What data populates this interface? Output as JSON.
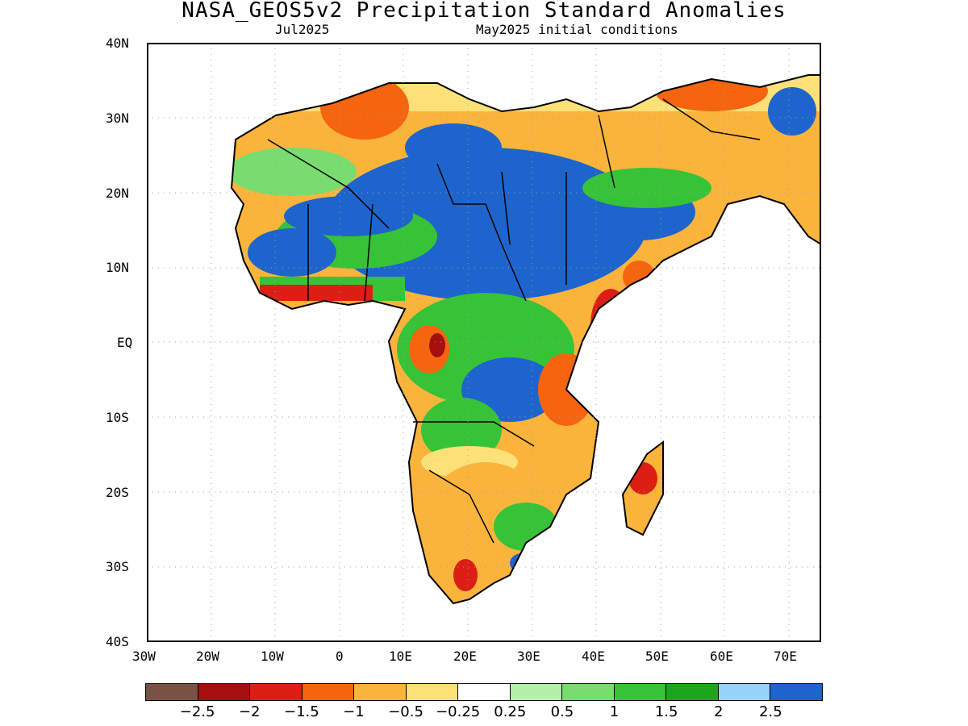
{
  "title": "NASA_GEOS5v2 Precipitation Standard Anomalies",
  "subtitle_left": "Jul2025",
  "subtitle_right": "May2025 initial conditions",
  "lat_labels": [
    "40N",
    "30N",
    "20N",
    "10N",
    "EQ",
    "10S",
    "20S",
    "30S",
    "40S"
  ],
  "lon_labels": [
    "30W",
    "20W",
    "10W",
    "0",
    "10E",
    "20E",
    "30E",
    "40E",
    "50E",
    "60E",
    "70E"
  ],
  "colorbar": {
    "colors": [
      "#7a5145",
      "#a50f0f",
      "#dc1e14",
      "#f5640f",
      "#fab43c",
      "#fde178",
      "#ffffff",
      "#b4f0aa",
      "#78dc6e",
      "#37c337",
      "#1ea51e",
      "#96d2fa",
      "#1e64cd"
    ],
    "labels": [
      "-2.5",
      "-2",
      "-1.5",
      "-1",
      "-0.5",
      "-0.25",
      "0.25",
      "0.5",
      "1",
      "1.5",
      "2",
      "2.5"
    ]
  }
}
